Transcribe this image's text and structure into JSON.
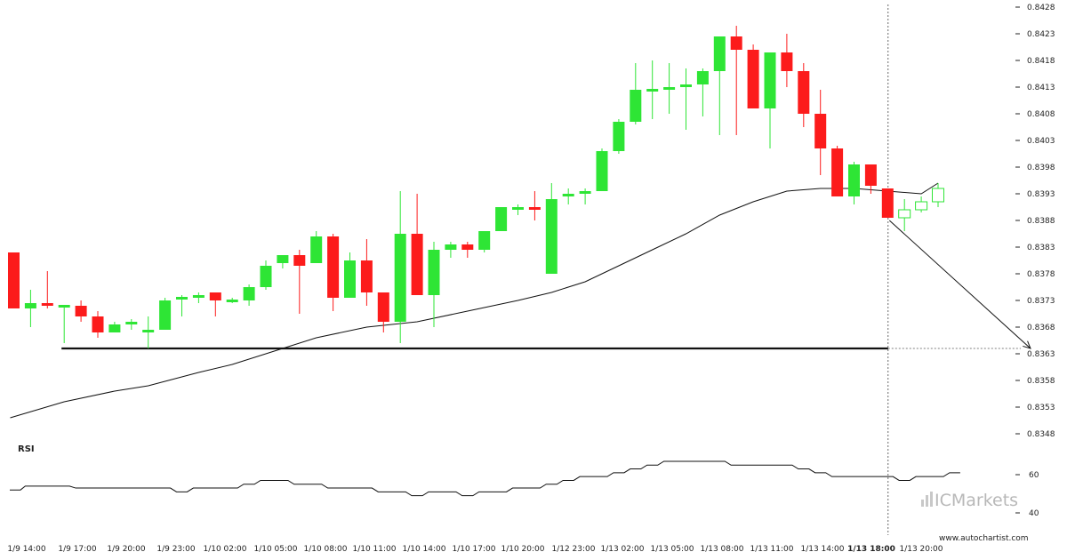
{
  "chart_data": {
    "type": "candlestick",
    "y_ticks": [
      "0.8428",
      "0.8423",
      "0.8418",
      "0.8413",
      "0.8408",
      "0.8403",
      "0.8398",
      "0.8393",
      "0.8388",
      "0.8383",
      "0.8378",
      "0.8373",
      "0.8368",
      "0.8363",
      "0.8358",
      "0.8353",
      "0.8348"
    ],
    "ylim": [
      0.83455,
      0.84285
    ],
    "x_labels": [
      "1/9 14:00",
      "1/9 17:00",
      "1/9 20:00",
      "1/9 23:00",
      "1/10 02:00",
      "1/10 05:00",
      "1/10 08:00",
      "1/10 11:00",
      "1/10 14:00",
      "1/10 17:00",
      "1/10 20:00",
      "1/12 23:00",
      "1/13 02:00",
      "1/13 05:00",
      "1/13 08:00",
      "1/13 11:00",
      "1/13 14:00",
      "1/13 18:00",
      "1/13 20:00"
    ],
    "highlight_label": "1/13 18:00",
    "candles": [
      {
        "o": 0.8382,
        "h": 0.8382,
        "l": 0.83715,
        "c": 0.83715
      },
      {
        "o": 0.83715,
        "h": 0.8375,
        "l": 0.8368,
        "c": 0.83725
      },
      {
        "o": 0.83725,
        "h": 0.83785,
        "l": 0.83715,
        "c": 0.8372
      },
      {
        "o": 0.8372,
        "h": 0.8372,
        "l": 0.8365,
        "c": 0.8372
      },
      {
        "o": 0.8372,
        "h": 0.8373,
        "l": 0.8369,
        "c": 0.837
      },
      {
        "o": 0.837,
        "h": 0.8371,
        "l": 0.8366,
        "c": 0.8367
      },
      {
        "o": 0.8367,
        "h": 0.8369,
        "l": 0.8367,
        "c": 0.83685
      },
      {
        "o": 0.83685,
        "h": 0.83695,
        "l": 0.83675,
        "c": 0.8369
      },
      {
        "o": 0.8367,
        "h": 0.837,
        "l": 0.8364,
        "c": 0.83675
      },
      {
        "o": 0.83675,
        "h": 0.83735,
        "l": 0.83675,
        "c": 0.8373
      },
      {
        "o": 0.83735,
        "h": 0.8374,
        "l": 0.837,
        "c": 0.83735
      },
      {
        "o": 0.83735,
        "h": 0.83745,
        "l": 0.83725,
        "c": 0.8374
      },
      {
        "o": 0.83745,
        "h": 0.83745,
        "l": 0.837,
        "c": 0.8373
      },
      {
        "o": 0.8373,
        "h": 0.83735,
        "l": 0.83725,
        "c": 0.8373
      },
      {
        "o": 0.8373,
        "h": 0.8376,
        "l": 0.8372,
        "c": 0.83755
      },
      {
        "o": 0.83755,
        "h": 0.83805,
        "l": 0.8375,
        "c": 0.83795
      },
      {
        "o": 0.838,
        "h": 0.83815,
        "l": 0.8379,
        "c": 0.83815
      },
      {
        "o": 0.83815,
        "h": 0.83825,
        "l": 0.83705,
        "c": 0.83795
      },
      {
        "o": 0.838,
        "h": 0.8386,
        "l": 0.838,
        "c": 0.8385
      },
      {
        "o": 0.8385,
        "h": 0.83855,
        "l": 0.8371,
        "c": 0.83735
      },
      {
        "o": 0.83735,
        "h": 0.8382,
        "l": 0.83735,
        "c": 0.83805
      },
      {
        "o": 0.83805,
        "h": 0.83845,
        "l": 0.8372,
        "c": 0.83745
      },
      {
        "o": 0.83745,
        "h": 0.83745,
        "l": 0.8367,
        "c": 0.8369
      },
      {
        "o": 0.8369,
        "h": 0.83935,
        "l": 0.8365,
        "c": 0.83855
      },
      {
        "o": 0.83855,
        "h": 0.8393,
        "l": 0.8374,
        "c": 0.8374
      },
      {
        "o": 0.8374,
        "h": 0.8384,
        "l": 0.8368,
        "c": 0.83825
      },
      {
        "o": 0.83825,
        "h": 0.8384,
        "l": 0.8381,
        "c": 0.83835
      },
      {
        "o": 0.83835,
        "h": 0.8384,
        "l": 0.8381,
        "c": 0.83825
      },
      {
        "o": 0.83825,
        "h": 0.8386,
        "l": 0.8382,
        "c": 0.8386
      },
      {
        "o": 0.8386,
        "h": 0.83905,
        "l": 0.8386,
        "c": 0.83905
      },
      {
        "o": 0.839,
        "h": 0.8391,
        "l": 0.8389,
        "c": 0.83905
      },
      {
        "o": 0.83905,
        "h": 0.83935,
        "l": 0.8388,
        "c": 0.839
      },
      {
        "o": 0.8378,
        "h": 0.8395,
        "l": 0.8378,
        "c": 0.8392
      },
      {
        "o": 0.83925,
        "h": 0.8394,
        "l": 0.8391,
        "c": 0.8393
      },
      {
        "o": 0.8393,
        "h": 0.8394,
        "l": 0.8391,
        "c": 0.83935
      },
      {
        "o": 0.83935,
        "h": 0.84015,
        "l": 0.83935,
        "c": 0.8401
      },
      {
        "o": 0.8401,
        "h": 0.8407,
        "l": 0.84005,
        "c": 0.84065
      },
      {
        "o": 0.84065,
        "h": 0.84175,
        "l": 0.8406,
        "c": 0.84125
      },
      {
        "o": 0.84125,
        "h": 0.8418,
        "l": 0.8407,
        "c": 0.84125
      },
      {
        "o": 0.84125,
        "h": 0.84175,
        "l": 0.8408,
        "c": 0.8413
      },
      {
        "o": 0.8413,
        "h": 0.84165,
        "l": 0.8405,
        "c": 0.84135
      },
      {
        "o": 0.84135,
        "h": 0.84165,
        "l": 0.84075,
        "c": 0.8416
      },
      {
        "o": 0.8416,
        "h": 0.84225,
        "l": 0.8404,
        "c": 0.84225
      },
      {
        "o": 0.84225,
        "h": 0.84245,
        "l": 0.8404,
        "c": 0.842
      },
      {
        "o": 0.842,
        "h": 0.8421,
        "l": 0.8409,
        "c": 0.8409
      },
      {
        "o": 0.8409,
        "h": 0.84195,
        "l": 0.84015,
        "c": 0.84195
      },
      {
        "o": 0.84195,
        "h": 0.8423,
        "l": 0.8413,
        "c": 0.8416
      },
      {
        "o": 0.8416,
        "h": 0.84175,
        "l": 0.84055,
        "c": 0.8408
      },
      {
        "o": 0.8408,
        "h": 0.84125,
        "l": 0.83965,
        "c": 0.84015
      },
      {
        "o": 0.84015,
        "h": 0.8402,
        "l": 0.83925,
        "c": 0.83925
      },
      {
        "o": 0.83925,
        "h": 0.8399,
        "l": 0.8391,
        "c": 0.83985
      },
      {
        "o": 0.83985,
        "h": 0.83985,
        "l": 0.8393,
        "c": 0.83945
      },
      {
        "o": 0.8394,
        "h": 0.8394,
        "l": 0.83885,
        "c": 0.83885
      },
      {
        "o": 0.83885,
        "h": 0.8392,
        "l": 0.8386,
        "c": 0.839
      },
      {
        "o": 0.839,
        "h": 0.83925,
        "l": 0.83895,
        "c": 0.83915
      },
      {
        "o": 0.83915,
        "h": 0.8395,
        "l": 0.83905,
        "c": 0.8394
      }
    ],
    "moving_average": [
      [
        0,
        0.8351
      ],
      [
        3,
        0.8354
      ],
      [
        6,
        0.8356
      ],
      [
        8,
        0.8357
      ],
      [
        11,
        0.83595
      ],
      [
        13,
        0.8361
      ],
      [
        16,
        0.8364
      ],
      [
        18,
        0.8366
      ],
      [
        21,
        0.8368
      ],
      [
        24,
        0.8369
      ],
      [
        27,
        0.8371
      ],
      [
        30,
        0.8373
      ],
      [
        32,
        0.83745
      ],
      [
        34,
        0.83765
      ],
      [
        36,
        0.83795
      ],
      [
        38,
        0.83825
      ],
      [
        40,
        0.83855
      ],
      [
        42,
        0.8389
      ],
      [
        44,
        0.83915
      ],
      [
        46,
        0.83935
      ],
      [
        48,
        0.8394
      ],
      [
        50,
        0.8394
      ],
      [
        52,
        0.83935
      ],
      [
        54,
        0.8393
      ],
      [
        55,
        0.8395
      ]
    ],
    "support_level": 0.8364,
    "support_range": [
      3,
      52
    ],
    "projection": {
      "from_index": 52,
      "from_value": 0.83885,
      "to_index": 60.5,
      "to_value": 0.8364
    },
    "vertical_marker_index": 52,
    "rsi": {
      "title": "RSI",
      "ticks": [
        "60",
        "40"
      ],
      "ylim": [
        35,
        80
      ],
      "values": [
        52,
        54,
        54,
        54,
        53,
        53,
        53,
        53,
        53,
        53,
        51,
        53,
        53,
        53,
        55,
        57,
        57,
        55,
        55,
        53,
        53,
        53,
        51,
        51,
        49,
        51,
        51,
        49,
        51,
        51,
        53,
        53,
        55,
        57,
        59,
        59,
        61,
        63,
        65,
        67,
        67,
        67,
        67,
        65,
        65,
        65,
        65,
        63,
        61,
        59,
        59,
        59,
        59,
        57,
        59,
        59,
        61
      ]
    },
    "brand": "ICMarkets",
    "site": "www.autochartist.com"
  }
}
